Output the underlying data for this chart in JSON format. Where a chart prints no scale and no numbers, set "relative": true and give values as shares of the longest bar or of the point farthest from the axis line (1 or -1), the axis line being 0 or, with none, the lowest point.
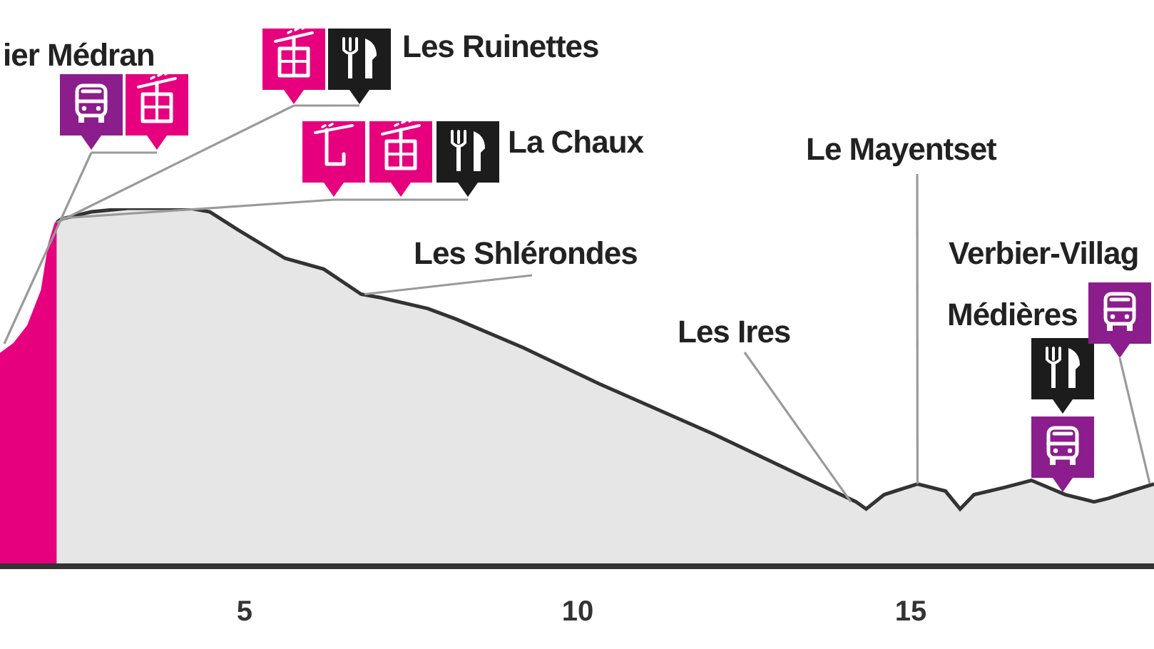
{
  "chart_data": {
    "type": "area",
    "relative": true,
    "xlim": [
      1.33,
      18.65
    ],
    "xticks": [
      5,
      10,
      15
    ],
    "series": [
      {
        "color": "#e6007e",
        "x": [
          1.33,
          1.55,
          1.76,
          1.97,
          2.08,
          2.18
        ],
        "values": [
          0.59,
          0.62,
          0.67,
          0.77,
          0.9,
          0.96
        ]
      },
      {
        "color": "#333333",
        "x": [
          2.18,
          2.25,
          2.7,
          3.25,
          3.7,
          4.18,
          4.48,
          4.9,
          5.61,
          6.19,
          6.75,
          7.05,
          7.75,
          8.18,
          9.19,
          10.32,
          12.03,
          14.18,
          14.33,
          14.6,
          15.1,
          15.52,
          15.74,
          15.95,
          16.4,
          16.81,
          17.32,
          17.75,
          17.97,
          18.3,
          18.65
        ],
        "values": [
          0.96,
          0.97,
          0.99,
          1.0,
          1.0,
          1.0,
          0.99,
          0.94,
          0.86,
          0.83,
          0.76,
          0.75,
          0.72,
          0.69,
          0.61,
          0.51,
          0.37,
          0.18,
          0.16,
          0.2,
          0.23,
          0.21,
          0.16,
          0.2,
          0.22,
          0.24,
          0.2,
          0.18,
          0.19,
          0.21,
          0.23
        ]
      }
    ],
    "annotations": [
      "ier Médran",
      "Les Ruinettes",
      "La Chaux",
      {
        "text": "Les Shlérondes",
        "x": 6.8,
        "y": 0.76
      },
      {
        "text": "Les Ires",
        "x": 14.1,
        "y": 0.18
      },
      {
        "text": "Le Mayentset",
        "x": 15.1,
        "y": 0.23
      },
      "Médières",
      "Verbier-Villag"
    ]
  }
}
